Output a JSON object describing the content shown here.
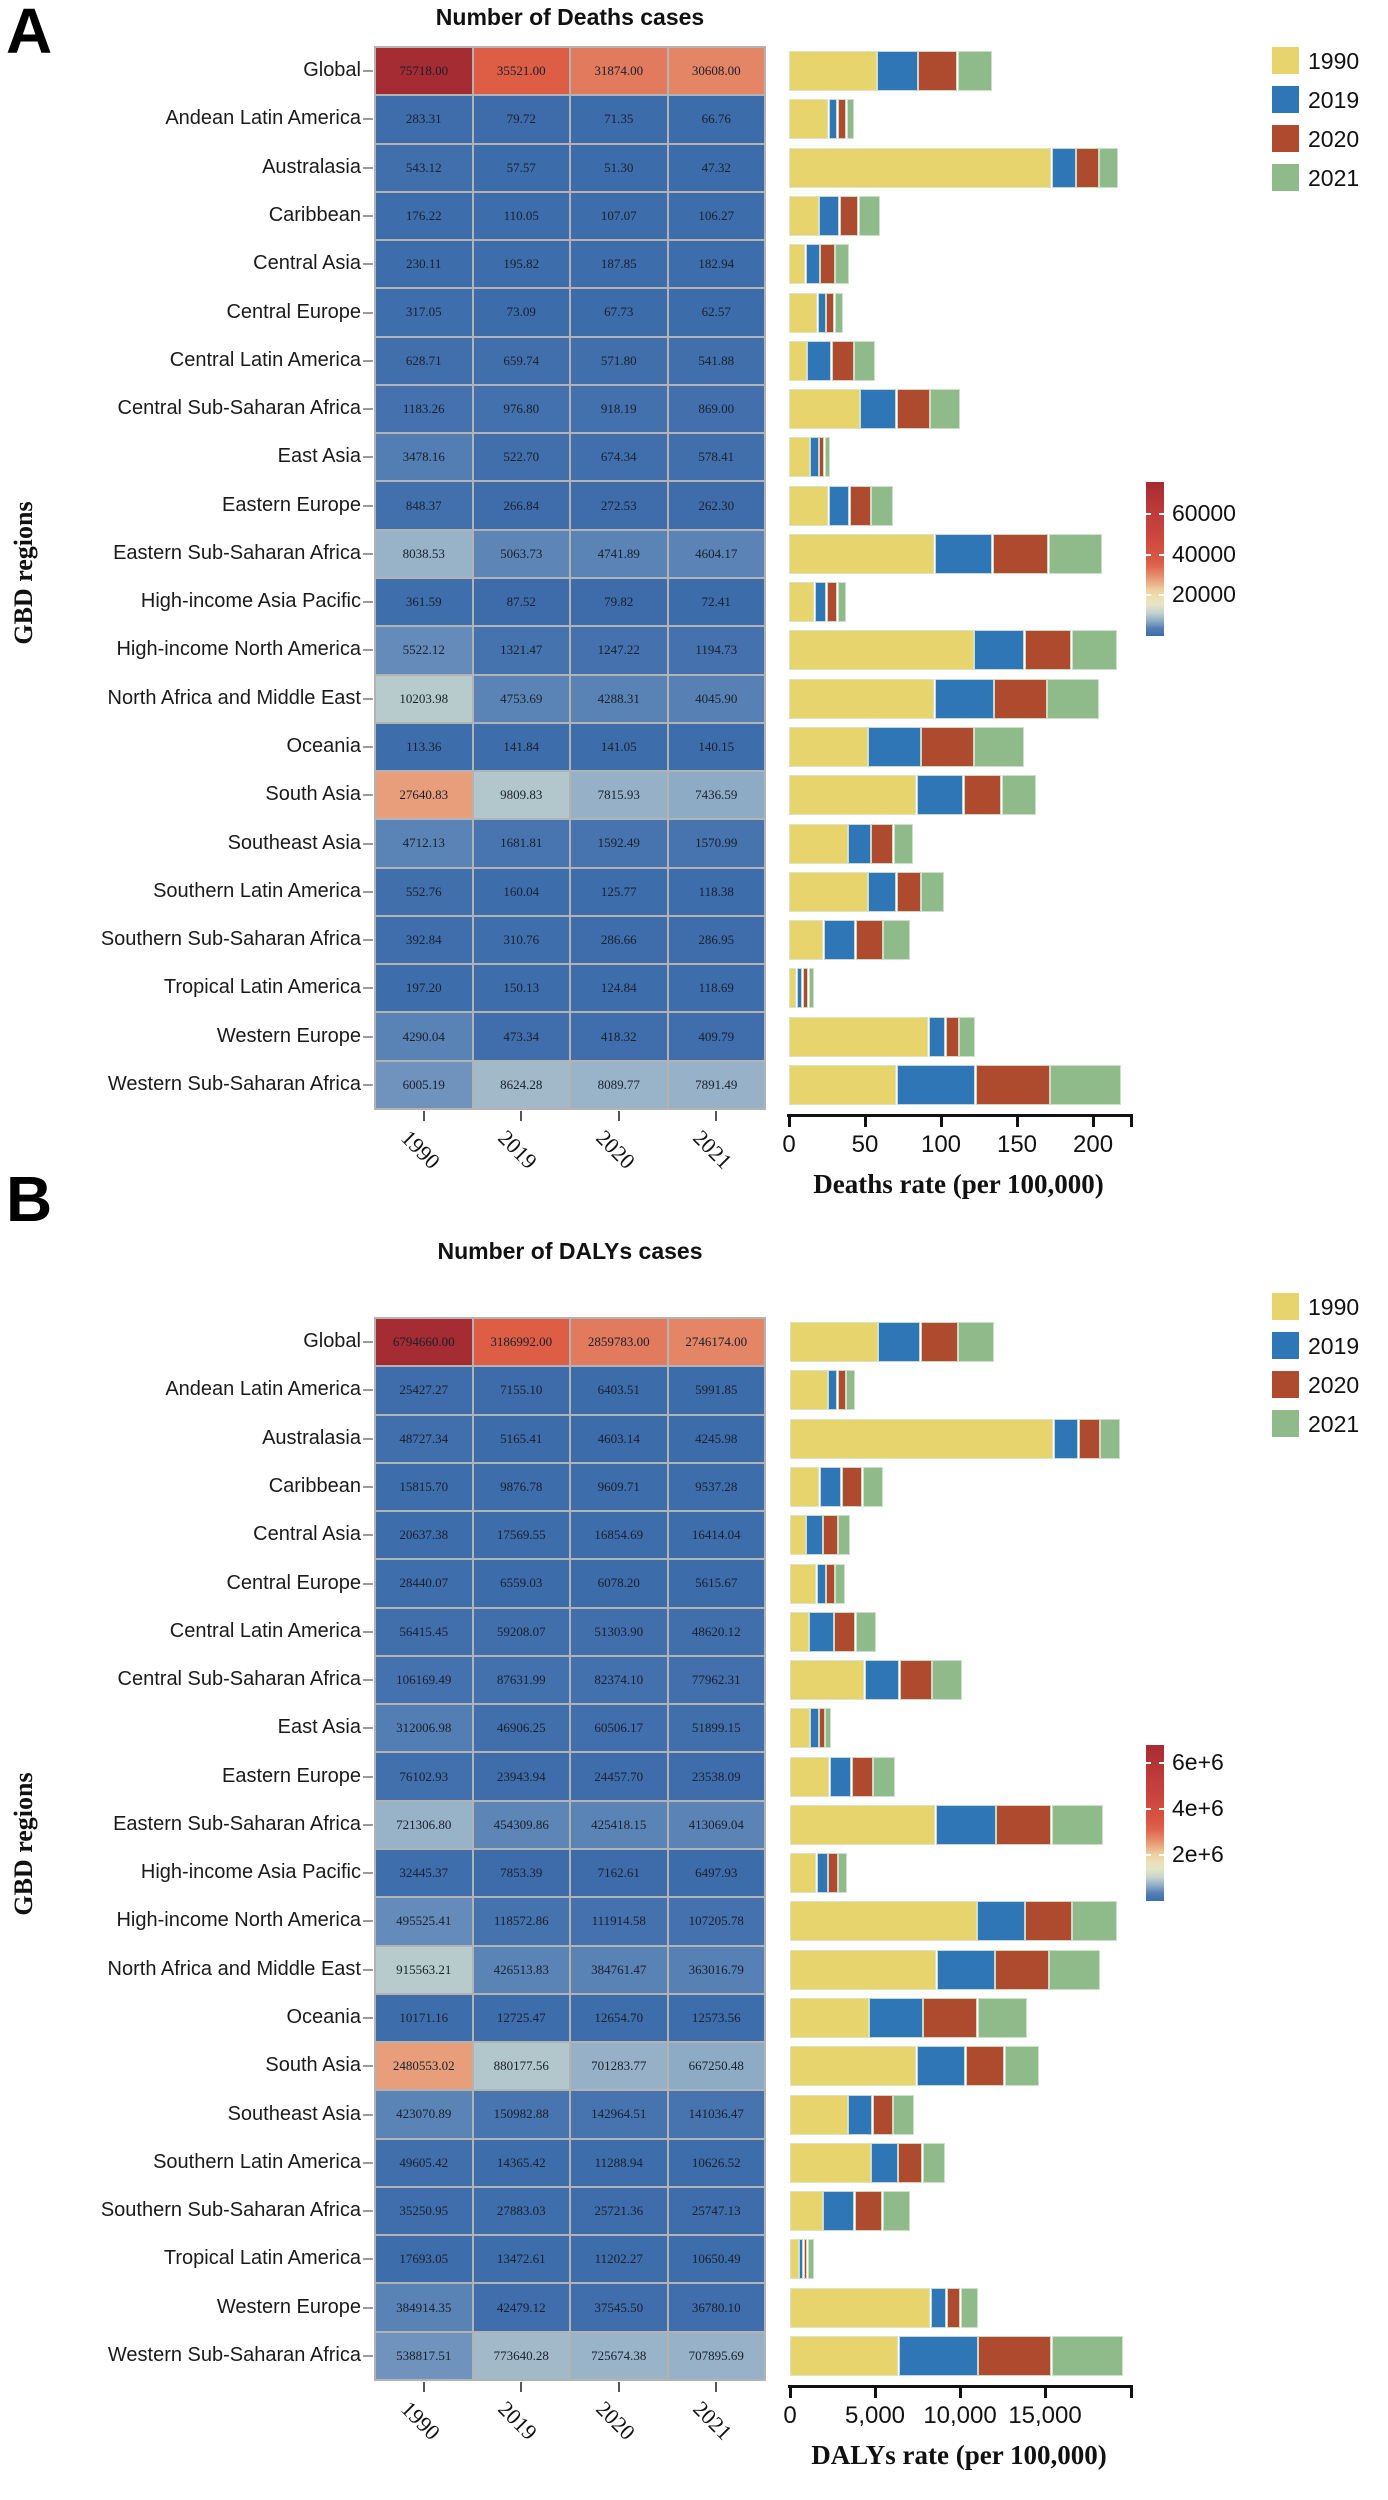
{
  "chart_data": {
    "type": "heatmap+stacked-bar",
    "years": [
      "1990",
      "2019",
      "2020",
      "2021"
    ],
    "colors": {
      "1990": "#e8d46d",
      "2019": "#2e76b5",
      "2020": "#ae4a2e",
      "2021": "#8ebb89"
    },
    "legend": [
      {
        "label": "1990",
        "color": "#e8d46d"
      },
      {
        "label": "2019",
        "color": "#2e76b5"
      },
      {
        "label": "2020",
        "color": "#ae4a2e"
      },
      {
        "label": "2021",
        "color": "#8ebb89"
      }
    ],
    "ylabel": "GBD regions",
    "panels": [
      {
        "letter": "A",
        "title": "Number of Deaths cases",
        "bar_xlabel": "Deaths rate (per 100,000)",
        "bar_xmax": 223,
        "bar_xticks": [
          {
            "label": "0",
            "v": 0
          },
          {
            "label": "50",
            "v": 50
          },
          {
            "label": "100",
            "v": 100
          },
          {
            "label": "150",
            "v": 150
          },
          {
            "label": "200",
            "v": 200
          }
        ],
        "colorbar": {
          "max": 75718,
          "ticks": [
            {
              "label": "60000",
              "v": 60000
            },
            {
              "label": "40000",
              "v": 40000
            },
            {
              "label": "20000",
              "v": 20000
            }
          ]
        },
        "rows": [
          {
            "region": "Global",
            "heat": [
              "75718.00",
              "35521.00",
              "31874.00",
              "30608.00"
            ],
            "bars": [
              58,
              27,
              26,
              23
            ]
          },
          {
            "region": "Andean Latin America",
            "heat": [
              "283.31",
              "79.72",
              "71.35",
              "66.76"
            ],
            "bars": [
              26,
              6,
              6,
              5
            ]
          },
          {
            "region": "Australasia",
            "heat": [
              "543.12",
              "57.57",
              "51.30",
              "47.32"
            ],
            "bars": [
              173,
              16,
              15,
              13
            ]
          },
          {
            "region": "Caribbean",
            "heat": [
              "176.22",
              "110.05",
              "107.07",
              "106.27"
            ],
            "bars": [
              20,
              13.5,
              12.5,
              14
            ]
          },
          {
            "region": "Central Asia",
            "heat": [
              "230.11",
              "195.82",
              "187.85",
              "182.94"
            ],
            "bars": [
              11,
              9.5,
              10,
              9
            ]
          },
          {
            "region": "Central Europe",
            "heat": [
              "317.05",
              "73.09",
              "67.73",
              "62.57"
            ],
            "bars": [
              19,
              5.5,
              5.5,
              6
            ]
          },
          {
            "region": "Central Latin America",
            "heat": [
              "628.71",
              "659.74",
              "571.80",
              "541.88"
            ],
            "bars": [
              12,
              16,
              15,
              14
            ]
          },
          {
            "region": "Central Sub-Saharan Africa",
            "heat": [
              "1183.26",
              "976.80",
              "918.19",
              "869.00"
            ],
            "bars": [
              47,
              24,
              22,
              20
            ]
          },
          {
            "region": "East Asia",
            "heat": [
              "3478.16",
              "522.70",
              "674.34",
              "578.41"
            ],
            "bars": [
              14,
              6,
              3.5,
              4
            ]
          },
          {
            "region": "Eastern Europe",
            "heat": [
              "848.37",
              "266.84",
              "272.53",
              "262.30"
            ],
            "bars": [
              26,
              14,
              14,
              15
            ]
          },
          {
            "region": "Eastern Sub-Saharan Africa",
            "heat": [
              "8038.53",
              "5063.73",
              "4741.89",
              "4604.17"
            ],
            "bars": [
              96,
              38,
              37,
              35
            ]
          },
          {
            "region": "High-income Asia Pacific",
            "heat": [
              "361.59",
              "87.52",
              "79.82",
              "72.41"
            ],
            "bars": [
              17,
              8,
              7,
              6
            ]
          },
          {
            "region": "High-income North America",
            "heat": [
              "5522.12",
              "1321.47",
              "1247.22",
              "1194.73"
            ],
            "bars": [
              122,
              33,
              31,
              30
            ]
          },
          {
            "region": "North Africa and Middle East",
            "heat": [
              "10203.98",
              "4753.69",
              "4288.31",
              "4045.90"
            ],
            "bars": [
              96,
              39,
              35,
              34
            ]
          },
          {
            "region": "Oceania",
            "heat": [
              "113.36",
              "141.84",
              "141.05",
              "140.15"
            ],
            "bars": [
              52,
              35,
              35,
              33
            ]
          },
          {
            "region": "South Asia",
            "heat": [
              "27640.83",
              "9809.83",
              "7815.93",
              "7436.59"
            ],
            "bars": [
              84,
              31,
              25,
              23
            ]
          },
          {
            "region": "Southeast Asia",
            "heat": [
              "4712.13",
              "1681.81",
              "1592.49",
              "1570.99"
            ],
            "bars": [
              39,
              15,
              15,
              13
            ]
          },
          {
            "region": "Southern Latin America",
            "heat": [
              "552.76",
              "160.04",
              "125.77",
              "118.38"
            ],
            "bars": [
              52,
              19,
              16,
              15
            ]
          },
          {
            "region": "Southern Sub-Saharan Africa",
            "heat": [
              "392.84",
              "310.76",
              "286.66",
              "286.95"
            ],
            "bars": [
              23,
              21,
              18,
              18
            ]
          },
          {
            "region": "Tropical Latin America",
            "heat": [
              "197.20",
              "150.13",
              "124.84",
              "118.69"
            ],
            "bars": [
              5,
              4,
              4,
              4
            ]
          },
          {
            "region": "Western Europe",
            "heat": [
              "4290.04",
              "473.34",
              "418.32",
              "409.79"
            ],
            "bars": [
              92,
              11,
              9,
              11
            ]
          },
          {
            "region": "Western Sub-Saharan Africa",
            "heat": [
              "6005.19",
              "8624.28",
              "8089.77",
              "7891.49"
            ],
            "bars": [
              71,
              52,
              49,
              47
            ]
          }
        ]
      },
      {
        "letter": "B",
        "title": "Number of DALYs cases",
        "bar_xlabel": "DALYs rate (per 100,000)",
        "bar_xmax": 19880,
        "bar_xticks": [
          {
            "label": "0",
            "v": 0
          },
          {
            "label": "5,000",
            "v": 5000
          },
          {
            "label": "10,000",
            "v": 10000
          },
          {
            "label": "15,000",
            "v": 15000
          }
        ],
        "colorbar": {
          "max": 6794660,
          "ticks": [
            {
              "label": "6e+6",
              "v": 6000000
            },
            {
              "label": "4e+6",
              "v": 4000000
            },
            {
              "label": "2e+6",
              "v": 2000000
            }
          ]
        },
        "rows": [
          {
            "region": "Global",
            "heat": [
              "6794660.00",
              "3186992.00",
              "2859783.00",
              "2746174.00"
            ],
            "bars": [
              5200,
              2500,
              2200,
              2100
            ]
          },
          {
            "region": "Andean Latin America",
            "heat": [
              "25427.27",
              "7155.10",
              "6403.51",
              "5991.85"
            ],
            "bars": [
              2250,
              550,
              500,
              530
            ]
          },
          {
            "region": "Australasia",
            "heat": [
              "48727.34",
              "5165.41",
              "4603.14",
              "4245.98"
            ],
            "bars": [
              15500,
              1470,
              1280,
              1180
            ]
          },
          {
            "region": "Caribbean",
            "heat": [
              "15815.70",
              "9876.78",
              "9609.71",
              "9537.28"
            ],
            "bars": [
              1760,
              1280,
              1240,
              1210
            ]
          },
          {
            "region": "Central Asia",
            "heat": [
              "20637.38",
              "17569.55",
              "16854.69",
              "16414.04"
            ],
            "bars": [
              950,
              1000,
              880,
              700
            ]
          },
          {
            "region": "Central Europe",
            "heat": [
              "28440.07",
              "6559.03",
              "6078.20",
              "5615.67"
            ],
            "bars": [
              1570,
              550,
              530,
              590
            ]
          },
          {
            "region": "Central Latin America",
            "heat": [
              "56415.45",
              "59208.07",
              "51303.90",
              "48620.12"
            ],
            "bars": [
              1120,
              1470,
              1290,
              1220
            ]
          },
          {
            "region": "Central Sub-Saharan Africa",
            "heat": [
              "106169.49",
              "87631.99",
              "82374.10",
              "77962.31"
            ],
            "bars": [
              4400,
              2060,
              1920,
              1770
            ]
          },
          {
            "region": "East Asia",
            "heat": [
              "312006.98",
              "46906.25",
              "60506.17",
              "51899.15"
            ],
            "bars": [
              1180,
              530,
              350,
              390
            ]
          },
          {
            "region": "Eastern Europe",
            "heat": [
              "76102.93",
              "23943.94",
              "24457.70",
              "23538.09"
            ],
            "bars": [
              2350,
              1280,
              1270,
              1280
            ]
          },
          {
            "region": "Eastern Sub-Saharan Africa",
            "heat": [
              "721306.80",
              "454309.86",
              "425418.15",
              "413069.04"
            ],
            "bars": [
              8570,
              3550,
              3280,
              3040
            ]
          },
          {
            "region": "High-income Asia Pacific",
            "heat": [
              "32445.37",
              "7853.39",
              "7162.61",
              "6497.93"
            ],
            "bars": [
              1570,
              680,
              590,
              530
            ]
          },
          {
            "region": "High-income North America",
            "heat": [
              "495525.41",
              "118572.86",
              "111914.58",
              "107205.78"
            ],
            "bars": [
              11000,
              2840,
              2750,
              2650
            ]
          },
          {
            "region": "North Africa and Middle East",
            "heat": [
              "915563.21",
              "426513.83",
              "384761.47",
              "363016.79"
            ],
            "bars": [
              8630,
              3430,
              3200,
              2980
            ]
          },
          {
            "region": "Oceania",
            "heat": [
              "10171.16",
              "12725.47",
              "12654.70",
              "12573.56"
            ],
            "bars": [
              4670,
              3180,
              3180,
              2940
            ]
          },
          {
            "region": "South Asia",
            "heat": [
              "2480553.02",
              "880177.56",
              "701283.77",
              "667250.48"
            ],
            "bars": [
              7450,
              2900,
              2290,
              2060
            ]
          },
          {
            "region": "Southeast Asia",
            "heat": [
              "423070.89",
              "150982.88",
              "142964.51",
              "141036.47"
            ],
            "bars": [
              3430,
              1430,
              1220,
              1240
            ]
          },
          {
            "region": "Southern Latin America",
            "heat": [
              "49605.42",
              "14365.42",
              "11288.94",
              "10626.52"
            ],
            "bars": [
              4765,
              1600,
              1440,
              1370
            ]
          },
          {
            "region": "Southern Sub-Saharan Africa",
            "heat": [
              "35250.95",
              "27883.03",
              "25721.36",
              "25747.13"
            ],
            "bars": [
              1960,
              1860,
              1630,
              1610
            ]
          },
          {
            "region": "Tropical Latin America",
            "heat": [
              "17693.05",
              "13472.61",
              "11202.27",
              "10650.49"
            ],
            "bars": [
              550,
              250,
              250,
              380
            ]
          },
          {
            "region": "Western Europe",
            "heat": [
              "384914.35",
              "42479.12",
              "37545.50",
              "36780.10"
            ],
            "bars": [
              8290,
              920,
              840,
              1020
            ]
          },
          {
            "region": "Western Sub-Saharan Africa",
            "heat": [
              "538817.51",
              "773640.28",
              "725674.38",
              "707895.69"
            ],
            "bars": [
              6400,
              4660,
              4340,
              4200
            ]
          }
        ]
      }
    ]
  }
}
